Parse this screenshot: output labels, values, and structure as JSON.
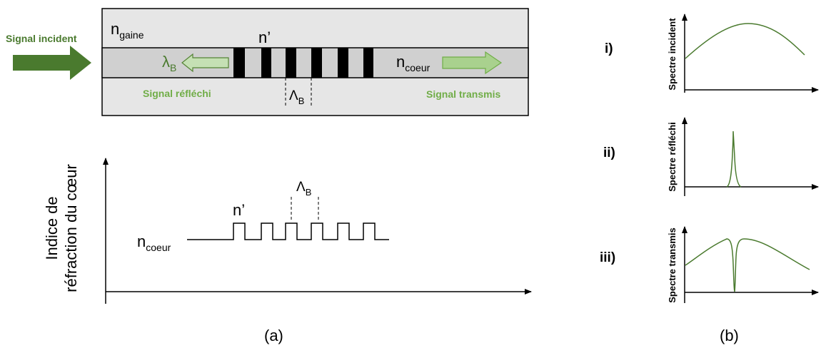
{
  "colors": {
    "accent": "#4a7a2e",
    "arrow_light": "#a9d18e",
    "cladding": "#e6e6e6",
    "core": "#d0d0d0",
    "line": "#000000",
    "text_green": "#548235"
  },
  "fiber": {
    "n_gaine_base": "n",
    "n_gaine_sub": "gaine",
    "n_prime": "n’",
    "n_coeur_base": "n",
    "n_coeur_sub": "coeur",
    "lambda_base": "λ",
    "lambda_sub": "B",
    "period_base": "Λ",
    "period_sub": "B",
    "signal_incident": "Signal incident",
    "signal_reflechi": "Signal réfléchi",
    "signal_transmis": "Signal transmis"
  },
  "profile": {
    "ylabel_line1": "Indice de",
    "ylabel_line2": "réfraction du cœur",
    "n_coeur_base": "n",
    "n_coeur_sub": "coeur",
    "n_prime": "n’",
    "period_base": "Λ",
    "period_sub": "B"
  },
  "spectra": [
    {
      "roman": "i)",
      "label": "Spectre incident"
    },
    {
      "roman": "ii)",
      "label": "Spectre réfléchi"
    },
    {
      "roman": "iii)",
      "label": "Spectre transmis"
    }
  ],
  "captions": {
    "a": "(a)",
    "b": "(b)"
  }
}
